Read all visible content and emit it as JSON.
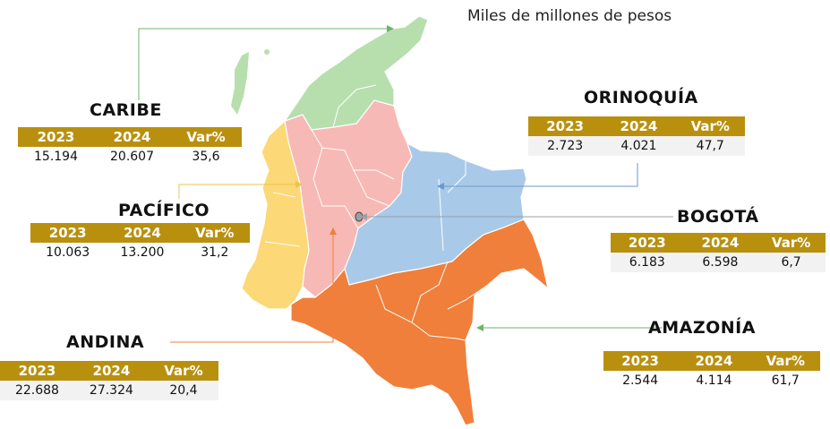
{
  "unit_label": "Miles de millones de pesos",
  "columns": [
    "2023",
    "2024",
    "Var%"
  ],
  "regions": {
    "caribe": {
      "name": "CARIBE",
      "v2023": "15.194",
      "v2024": "20.607",
      "var": "35,6",
      "color": "#b7dfae"
    },
    "pacifico": {
      "name": "PACÍFICO",
      "v2023": "10.063",
      "v2024": "13.200",
      "var": "31,2",
      "color": "#fcd876"
    },
    "andina": {
      "name": "ANDINA",
      "v2023": "22.688",
      "v2024": "27.324",
      "var": "20,4",
      "color": "#f7b9b5"
    },
    "orinoquia": {
      "name": "ORINOQUÍA",
      "v2023": "2.723",
      "v2024": "4.021",
      "var": "47,7",
      "color": "#a9c9e8"
    },
    "bogota": {
      "name": "BOGOTÁ",
      "v2023": "6.183",
      "v2024": "6.598",
      "var": "6,7",
      "color": "#9aa0a6"
    },
    "amazonia": {
      "name": "AMAZONÍA",
      "v2023": "2.544",
      "v2024": "4.114",
      "var": "61,7",
      "color": "#ef7f3a"
    }
  },
  "colors": {
    "header_bg": "#b9900e",
    "header_text": "#ffffff",
    "connector_green": "#6fb36a",
    "connector_blue": "#6a9ac8",
    "connector_orange": "#ef7f3a"
  }
}
